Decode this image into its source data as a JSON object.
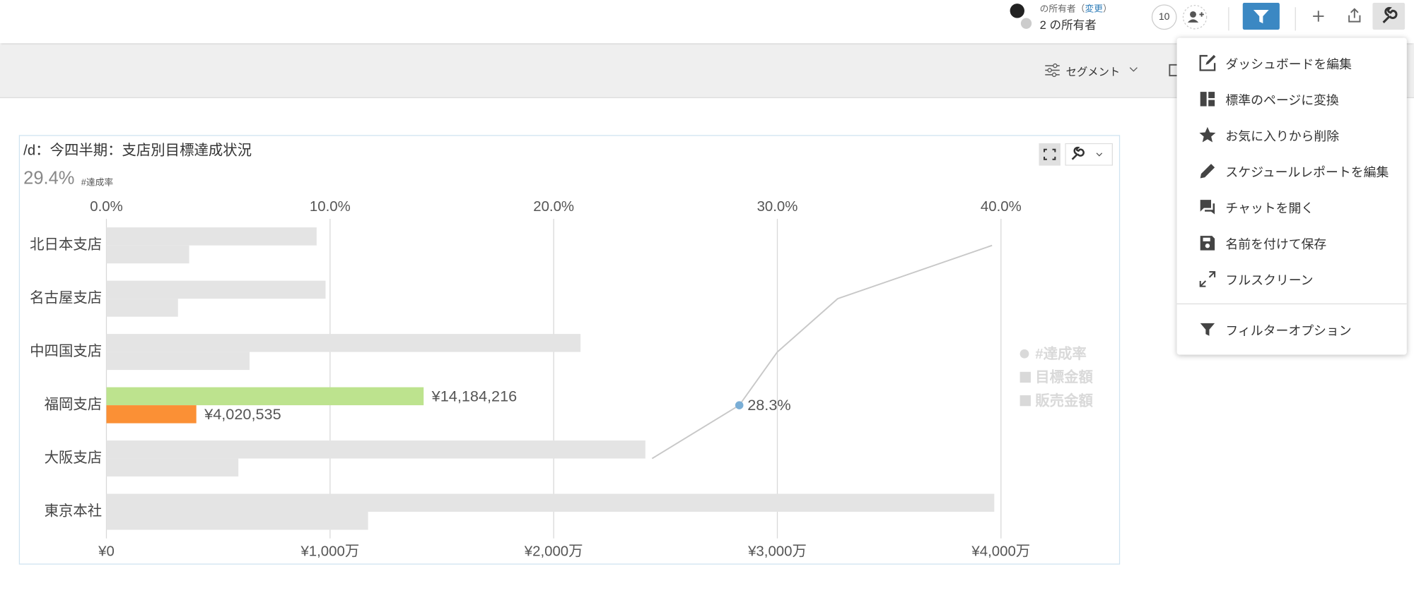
{
  "header": {
    "owner_prefix": "の所有者（",
    "change_link": "変更",
    "owner_suffix": "）",
    "owners": "2 の所有者",
    "follower_count": 10
  },
  "toolbar": {
    "segment": "セグメント"
  },
  "menu": {
    "items": [
      "ダッシュボードを編集",
      "標準のページに変換",
      "お気に入りから削除",
      "スケジュールレポートを編集",
      "チャットを開く",
      "名前を付けて保存",
      "フルスクリーン",
      "フィルターオプション"
    ]
  },
  "chart_data": {
    "type": "bar",
    "orientation": "horizontal",
    "title": "/d：今四半期：支店別目標達成状況",
    "summary": "29.4%",
    "summary_caption": "#達成率",
    "categories": [
      "北日本支店",
      "名古屋支店",
      "中四国支店",
      "福岡支店",
      "大阪支店",
      "東京本社"
    ],
    "series": [
      {
        "name": "#達成率",
        "type": "line",
        "axis": "x2",
        "color": "#c8c8c8",
        "values": [
          39.6,
          32.7,
          30.0,
          28.3,
          24.4,
          null
        ],
        "marker_colors": [
          null,
          null,
          null,
          "#7aaed6",
          null,
          null
        ],
        "value_labels": [
          null,
          null,
          null,
          "28.3%",
          null,
          null
        ]
      },
      {
        "name": "目標金額",
        "type": "bar",
        "color": "#e4e4e4",
        "values": [
          9400000,
          9800000,
          21200000,
          14184216,
          24100000,
          39700000
        ],
        "colors": [
          "#e4e4e4",
          "#e4e4e4",
          "#e4e4e4",
          "#bde38e",
          "#e4e4e4",
          "#e4e4e4"
        ],
        "value_labels": [
          null,
          null,
          null,
          "¥14,184,216",
          null,
          null
        ]
      },
      {
        "name": "販売金額",
        "type": "bar",
        "color": "#e4e4e4",
        "values": [
          3700000,
          3200000,
          6400000,
          4020535,
          5900000,
          11700000
        ],
        "colors": [
          "#e4e4e4",
          "#e4e4e4",
          "#e4e4e4",
          "#fb9035",
          "#e4e4e4",
          "#e4e4e4"
        ],
        "value_labels": [
          null,
          null,
          null,
          "¥4,020,535",
          null,
          null
        ]
      }
    ],
    "xlim": [
      0,
      45000000
    ],
    "xticks": [
      {
        "value": 0,
        "label": "¥0"
      },
      {
        "value": 10000000,
        "label": "¥1,000万"
      },
      {
        "value": 20000000,
        "label": "¥2,000万"
      },
      {
        "value": 30000000,
        "label": "¥3,000万"
      },
      {
        "value": 40000000,
        "label": "¥4,000万"
      }
    ],
    "x2lim": [
      0,
      45
    ],
    "x2ticks": [
      {
        "value": 0,
        "label": "0.0%"
      },
      {
        "value": 10,
        "label": "10.0%"
      },
      {
        "value": 20,
        "label": "20.0%"
      },
      {
        "value": 30,
        "label": "30.0%"
      },
      {
        "value": 40,
        "label": "40.0%"
      }
    ],
    "grid": true,
    "legend": "right",
    "legend_color": "#d9d9d9"
  }
}
